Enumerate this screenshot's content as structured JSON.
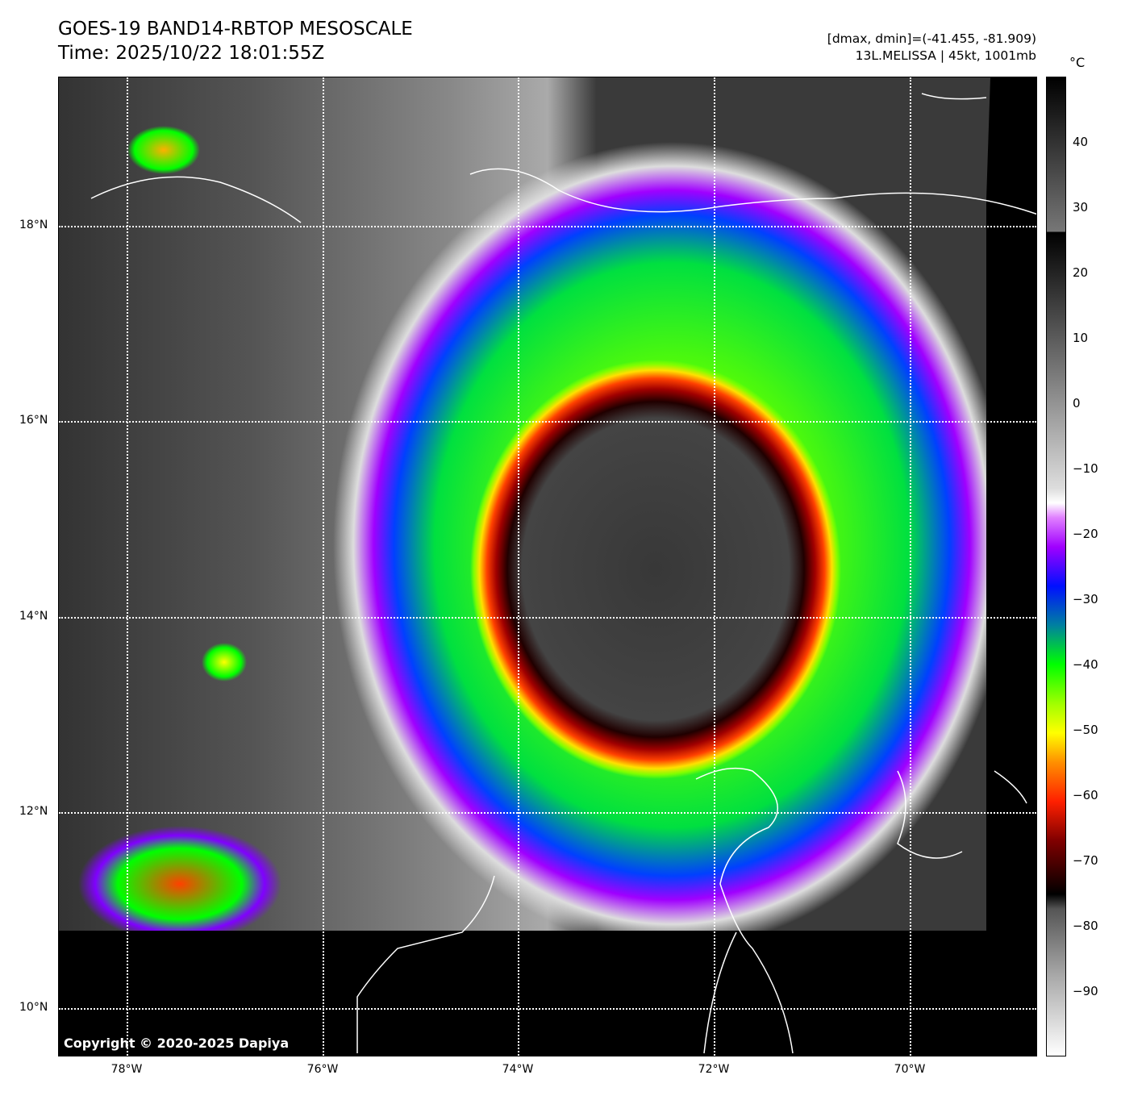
{
  "title": {
    "line1": "GOES-19 BAND14-RBTOP MESOSCALE",
    "line2": "Time: 2025/10/22 18:01:55Z"
  },
  "info": {
    "line1": "[dmax, dmin]=(-41.455, -81.909)",
    "line2": "13L.MELISSA | 45kt, 1001mb"
  },
  "colorbar": {
    "unit": "°C",
    "ticks": [
      "40",
      "30",
      "20",
      "10",
      "0",
      "−10",
      "−20",
      "−30",
      "−40",
      "−50",
      "−60",
      "−70",
      "−80",
      "−90"
    ],
    "range": [
      -100,
      50
    ]
  },
  "axes": {
    "lat_labels": [
      "18°N",
      "16°N",
      "14°N",
      "12°N",
      "10°N"
    ],
    "lon_labels": [
      "78°W",
      "76°W",
      "74°W",
      "72°W",
      "70°W"
    ]
  },
  "copyright": "Copyright © 2020-2025 Dapiya"
}
